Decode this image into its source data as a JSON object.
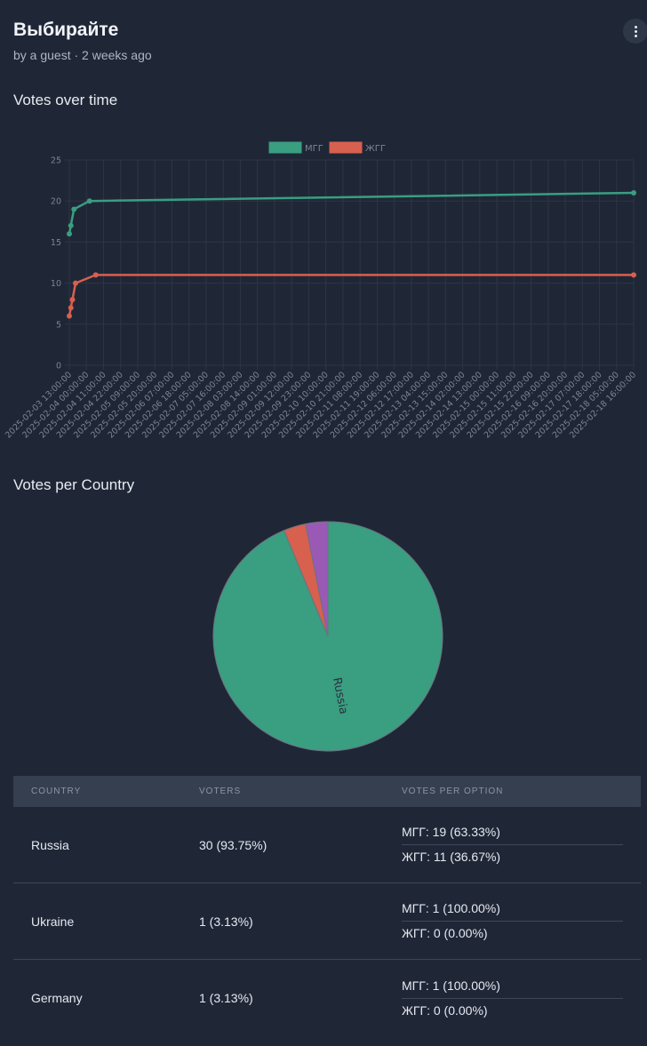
{
  "header": {
    "title": "Выбирайте",
    "subtitle": "by a guest · 2 weeks ago"
  },
  "sections": {
    "line_title": "Votes over time",
    "pie_title": "Votes per Country"
  },
  "colors": {
    "green": "#3a9e80",
    "red": "#d7604e",
    "purple": "#9b59b6",
    "background": "#1f2737"
  },
  "chart_data": [
    {
      "type": "line",
      "title": "",
      "legend_position": "top",
      "series": [
        {
          "name": "МГГ",
          "color": "#3a9e80",
          "points": [
            [
              "2025-02-03 13:00:00",
              16
            ],
            [
              "2025-02-03 14:00:00",
              17
            ],
            [
              "2025-02-03 16:00:00",
              19
            ],
            [
              "2025-02-04 02:00:00",
              20
            ],
            [
              "2025-02-18 16:00:00",
              21
            ]
          ]
        },
        {
          "name": "ЖГГ",
          "color": "#d7604e",
          "points": [
            [
              "2025-02-03 13:00:00",
              6
            ],
            [
              "2025-02-03 14:00:00",
              7
            ],
            [
              "2025-02-03 15:00:00",
              8
            ],
            [
              "2025-02-03 17:00:00",
              10
            ],
            [
              "2025-02-04 06:00:00",
              11
            ],
            [
              "2025-02-18 16:00:00",
              11
            ]
          ]
        }
      ],
      "ylim": [
        0,
        25
      ],
      "yticks": [
        0,
        5,
        10,
        15,
        20,
        25
      ],
      "xticks": [
        "2025-02-03 13:00:00",
        "2025-02-04 00:00:00",
        "2025-02-04 11:00:00",
        "2025-02-04 22:00:00",
        "2025-02-05 09:00:00",
        "2025-02-05 20:00:00",
        "2025-02-06 07:00:00",
        "2025-02-06 18:00:00",
        "2025-02-07 05:00:00",
        "2025-02-07 16:00:00",
        "2025-02-08 03:00:00",
        "2025-02-08 14:00:00",
        "2025-02-09 01:00:00",
        "2025-02-09 12:00:00",
        "2025-02-09 23:00:00",
        "2025-02-10 10:00:00",
        "2025-02-10 21:00:00",
        "2025-02-11 08:00:00",
        "2025-02-11 19:00:00",
        "2025-02-12 06:00:00",
        "2025-02-12 17:00:00",
        "2025-02-13 04:00:00",
        "2025-02-13 15:00:00",
        "2025-02-14 02:00:00",
        "2025-02-14 13:00:00",
        "2025-02-15 00:00:00",
        "2025-02-15 11:00:00",
        "2025-02-15 22:00:00",
        "2025-02-16 09:00:00",
        "2025-02-16 20:00:00",
        "2025-02-17 07:00:00",
        "2025-02-17 18:00:00",
        "2025-02-18 05:00:00",
        "2025-02-18 16:00:00"
      ],
      "grid": true
    },
    {
      "type": "pie",
      "labels": [
        "Russia",
        "Ukraine",
        "Germany"
      ],
      "values": [
        30,
        1,
        1
      ],
      "colors": [
        "#3a9e80",
        "#d7604e",
        "#9b59b6"
      ],
      "shown_labels": [
        "Russia"
      ]
    }
  ],
  "table": {
    "headers": [
      "COUNTRY",
      "VOTERS",
      "VOTES PER OPTION"
    ],
    "rows": [
      {
        "country": "Russia",
        "voters": "30 (93.75%)",
        "votes": [
          "МГГ: 19 (63.33%)",
          "ЖГГ: 11 (36.67%)"
        ]
      },
      {
        "country": "Ukraine",
        "voters": "1 (3.13%)",
        "votes": [
          "МГГ: 1 (100.00%)",
          "ЖГГ: 0 (0.00%)"
        ]
      },
      {
        "country": "Germany",
        "voters": "1 (3.13%)",
        "votes": [
          "МГГ: 1 (100.00%)",
          "ЖГГ: 0 (0.00%)"
        ]
      }
    ]
  }
}
